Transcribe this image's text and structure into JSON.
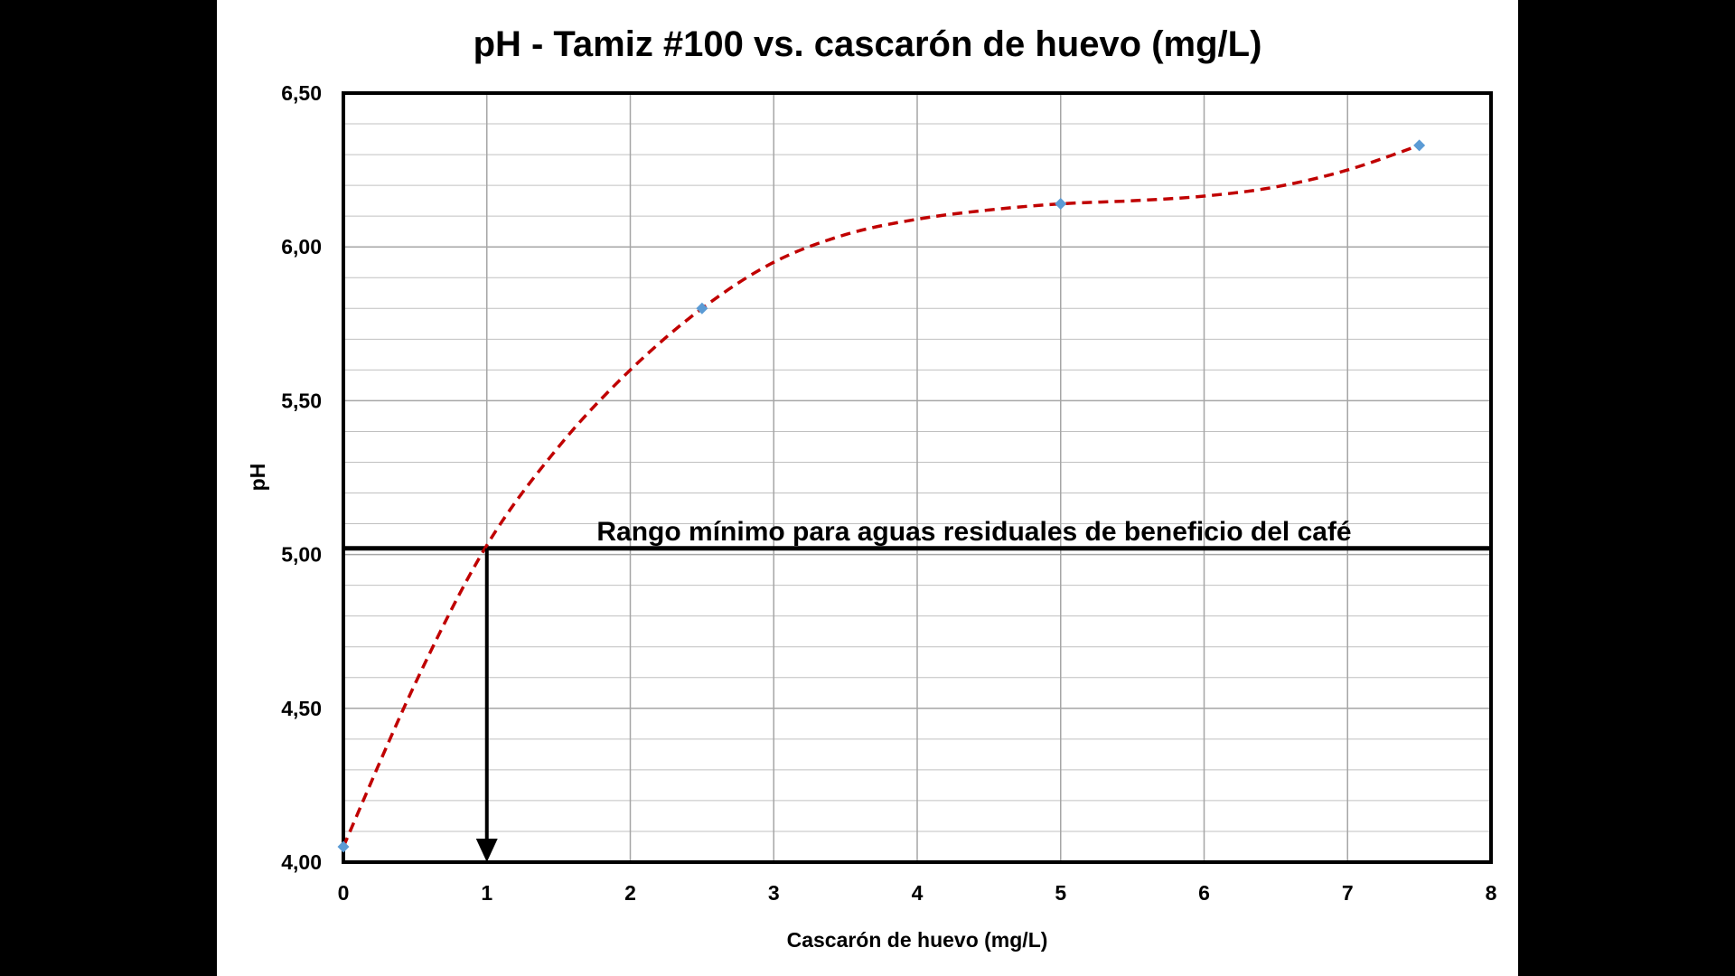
{
  "colors": {
    "page_background": "#000000",
    "slide_background": "#ffffff",
    "gridline": "#a6a6a6",
    "plot_border": "#000000",
    "data_point": "#5b9bd5",
    "trend_line": "#c00000",
    "threshold_line": "#000000",
    "arrow": "#000000"
  },
  "chart_data": {
    "type": "scatter",
    "title": "pH - Tamiz #100 vs. cascarón de huevo (mg/L)",
    "xlabel": "Cascarón de huevo (mg/L)",
    "ylabel": "pH",
    "xlim": [
      0,
      8
    ],
    "ylim": [
      4.0,
      6.5
    ],
    "x_ticks": [
      0,
      1,
      2,
      3,
      4,
      5,
      6,
      7,
      8
    ],
    "x_tick_labels": [
      "0",
      "1",
      "2",
      "3",
      "4",
      "5",
      "6",
      "7",
      "8"
    ],
    "y_ticks": [
      4.0,
      4.5,
      5.0,
      5.5,
      6.0,
      6.5
    ],
    "y_tick_labels": [
      "4,00",
      "4,50",
      "5,00",
      "5,50",
      "6,00",
      "6,50"
    ],
    "grid": true,
    "y_minor_step": 0.1,
    "series": [
      {
        "marker": "diamond",
        "x": [
          0,
          2.5,
          5,
          7.5
        ],
        "y": [
          4.05,
          5.8,
          6.14,
          6.33
        ]
      }
    ],
    "trendline": {
      "style": "dashed",
      "x": [
        0,
        0.5,
        1,
        1.5,
        2,
        2.5,
        3,
        3.5,
        4,
        4.5,
        5,
        5.5,
        6,
        6.5,
        7,
        7.5
      ],
      "y": [
        4.05,
        4.58,
        5.03,
        5.35,
        5.6,
        5.8,
        5.95,
        6.04,
        6.09,
        6.12,
        6.14,
        6.15,
        6.165,
        6.195,
        6.25,
        6.33
      ]
    },
    "annotations": [
      {
        "type": "hline",
        "y": 5.02,
        "text": "Rango mínimo para aguas residuales de beneficio del café"
      },
      {
        "type": "arrow",
        "x": 1,
        "from_y": 5.02,
        "to_y": 4.0
      }
    ]
  }
}
